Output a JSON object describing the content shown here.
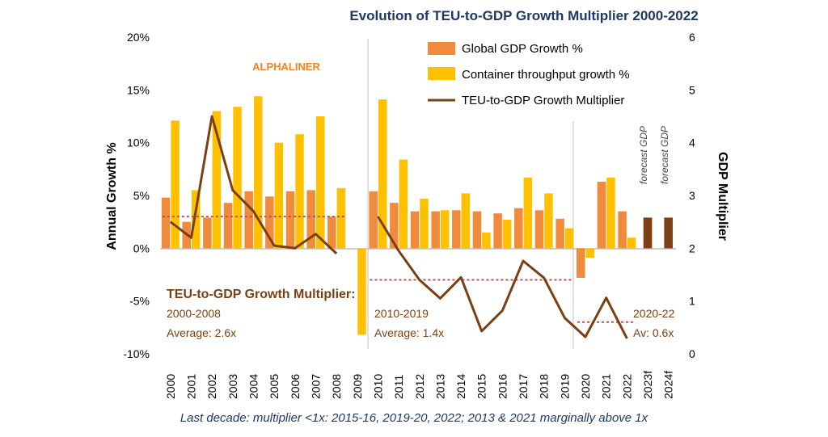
{
  "chart_data": {
    "type": "bar",
    "title": "Evolution of TEU-to-GDP Growth Multiplier 2000-2022",
    "brand": "ALPHALINER",
    "ylabel_left": "Annual Growth %",
    "ylabel_right": "GDP Multiplier",
    "ylim_left": [
      -10,
      20
    ],
    "ylim_right": [
      0,
      6
    ],
    "yticks_left": [
      "20%",
      "15%",
      "10%",
      "5%",
      "0%",
      "-5%",
      "-10%"
    ],
    "yticks_right": [
      "6",
      "5",
      "4",
      "3",
      "2",
      "1",
      "0"
    ],
    "categories": [
      "2000",
      "2001",
      "2002",
      "2003",
      "2004",
      "2005",
      "2006",
      "2007",
      "2008",
      "2009",
      "2010",
      "2011",
      "2012",
      "2013",
      "2014",
      "2015",
      "2016",
      "2017",
      "2018",
      "2019",
      "2020",
      "2021",
      "2022",
      "2023f",
      "2024f"
    ],
    "series": [
      {
        "name": "Global GDP Growth %",
        "color": "#f08a3c",
        "values": [
          4.8,
          2.5,
          2.9,
          4.3,
          5.4,
          4.9,
          5.4,
          5.5,
          3.0,
          null,
          5.4,
          4.3,
          3.5,
          3.5,
          3.6,
          3.5,
          3.3,
          3.8,
          3.6,
          2.8,
          -2.8,
          6.3,
          3.5,
          2.9,
          2.9
        ]
      },
      {
        "name": "Container throughput growth %",
        "color": "#ffc000",
        "values": [
          12.1,
          5.5,
          13.0,
          13.4,
          14.4,
          10.0,
          10.8,
          12.5,
          5.7,
          -8.2,
          14.1,
          8.4,
          4.7,
          3.6,
          5.2,
          1.5,
          2.7,
          6.7,
          5.2,
          1.9,
          -0.9,
          6.7,
          1.0,
          null,
          null
        ]
      },
      {
        "name": "TEU-to-GDP Growth Multiplier",
        "color": "#7b3f13",
        "values": [
          2.5,
          2.2,
          4.5,
          3.1,
          2.7,
          2.05,
          2.0,
          2.27,
          1.9,
          null,
          2.6,
          1.95,
          1.4,
          1.05,
          1.45,
          0.43,
          0.82,
          1.76,
          1.44,
          0.68,
          0.32,
          1.06,
          0.29,
          null,
          null
        ]
      }
    ],
    "forecast_bars": {
      "color": "#7b3f13",
      "values": [
        null,
        null,
        null,
        null,
        null,
        null,
        null,
        null,
        null,
        null,
        null,
        null,
        null,
        null,
        null,
        null,
        null,
        null,
        null,
        null,
        null,
        null,
        null,
        2.9,
        2.9
      ]
    },
    "forecast_labels": [
      "forecast GDP",
      "forecast GDP"
    ],
    "averages": [
      {
        "heading": "TEU-to-GDP Growth Multiplier:",
        "period": "2000-2008",
        "label": "Average: 2.6x",
        "value": 2.6,
        "from": "2000",
        "to": "2008"
      },
      {
        "period": "2010-2019",
        "label": "Average: 1.4x",
        "value": 1.4,
        "from": "2010",
        "to": "2019"
      },
      {
        "period": "2020-22",
        "label": "Av: 0.6x",
        "value": 0.6,
        "from": "2020",
        "to": "2022"
      }
    ],
    "footnote": "Last decade: multiplier <1x: 2015-16, 2019-20, 2022; 2013 & 2021 marginally above 1x"
  }
}
